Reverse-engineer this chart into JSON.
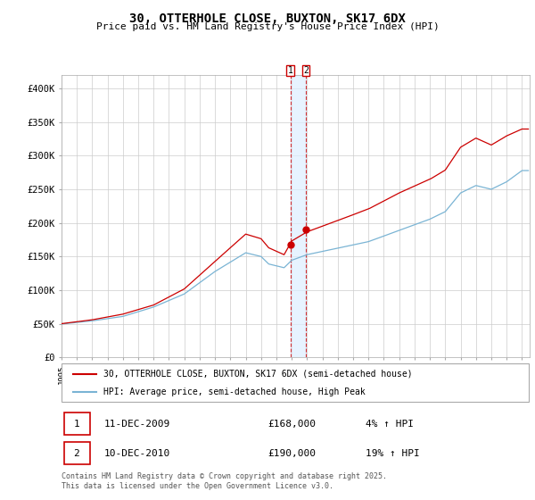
{
  "title": "30, OTTERHOLE CLOSE, BUXTON, SK17 6DX",
  "subtitle": "Price paid vs. HM Land Registry's House Price Index (HPI)",
  "red_color": "#cc0000",
  "blue_color": "#7ab4d4",
  "transaction1_date": 2009.92,
  "transaction1_price": 168000,
  "transaction2_date": 2010.92,
  "transaction2_price": 190000,
  "legend1": "30, OTTERHOLE CLOSE, BUXTON, SK17 6DX (semi-detached house)",
  "legend2": "HPI: Average price, semi-detached house, High Peak",
  "footnote": "Contains HM Land Registry data © Crown copyright and database right 2025.\nThis data is licensed under the Open Government Licence v3.0.",
  "ylim_max": 420000,
  "yticks": [
    0,
    50000,
    100000,
    150000,
    200000,
    250000,
    300000,
    350000,
    400000
  ],
  "ytick_labels": [
    "£0",
    "£50K",
    "£100K",
    "£150K",
    "£200K",
    "£250K",
    "£300K",
    "£350K",
    "£400K"
  ],
  "row1": [
    "1",
    "11-DEC-2009",
    "£168,000",
    "4% ↑ HPI"
  ],
  "row2": [
    "2",
    "10-DEC-2010",
    "£190,000",
    "19% ↑ HPI"
  ]
}
